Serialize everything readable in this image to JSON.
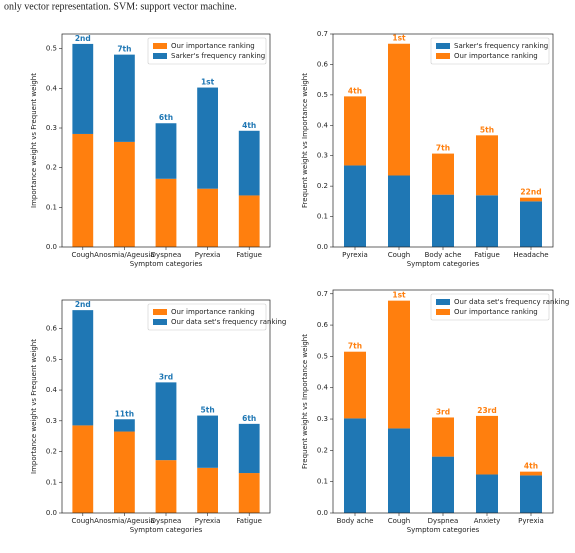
{
  "caption": "only vector representation. SVM: support vector machine.",
  "chart_data": [
    {
      "type": "bar",
      "stacked": true,
      "categories": [
        "Cough",
        "Anosmia/Ageusia",
        "Dyspnea",
        "Pyrexia",
        "Fatigue"
      ],
      "series": [
        {
          "name": "Our importance ranking",
          "color": "#ff7f0e",
          "values": [
            0.285,
            0.265,
            0.172,
            0.147,
            0.13
          ]
        },
        {
          "name": "Sarker's frequency ranking",
          "color": "#1f77b4",
          "values": [
            0.227,
            0.22,
            0.14,
            0.255,
            0.163
          ]
        }
      ],
      "annotations": [
        "2nd",
        "7th",
        "6th",
        "1st",
        "4th"
      ],
      "xlabel": "Symptom categories",
      "ylabel": "Importance weight vs Frequent weight",
      "ylim": [
        0,
        0.537
      ],
      "yticks": [
        {
          "value": 0,
          "label": "0.0"
        },
        0.1,
        0.2,
        0.3,
        0.4,
        0.5
      ],
      "legend": "upper right"
    },
    {
      "type": "bar",
      "stacked": true,
      "categories": [
        "Pyrexia",
        "Cough",
        "Body ache",
        "Fatigue",
        "Headache"
      ],
      "series": [
        {
          "name": "Sarker's frequency ranking",
          "color": "#1f77b4",
          "values": [
            0.268,
            0.235,
            0.172,
            0.17,
            0.15
          ]
        },
        {
          "name": "Our importance ranking",
          "color": "#ff7f0e",
          "values": [
            0.227,
            0.433,
            0.135,
            0.197,
            0.012
          ]
        }
      ],
      "annotations": [
        "4th",
        "1st",
        "7th",
        "5th",
        "22nd"
      ],
      "xlabel": "Symptom categories",
      "ylabel": "Frequent weight vs Importance weight",
      "ylim": [
        0,
        0.7
      ],
      "yticks": [
        {
          "value": 0,
          "label": "0.0"
        },
        0.1,
        0.2,
        0.3,
        0.4,
        0.5,
        0.6,
        0.7
      ],
      "legend": "upper right"
    },
    {
      "type": "bar",
      "stacked": true,
      "categories": [
        "Cough",
        "Anosmia/Ageusia",
        "Dyspnea",
        "Pyrexia",
        "Fatigue"
      ],
      "series": [
        {
          "name": "Our importance ranking",
          "color": "#ff7f0e",
          "values": [
            0.285,
            0.265,
            0.172,
            0.147,
            0.13
          ]
        },
        {
          "name": "Our data set's frequency ranking",
          "color": "#1f77b4",
          "values": [
            0.375,
            0.04,
            0.253,
            0.17,
            0.16
          ]
        }
      ],
      "annotations": [
        "2nd",
        "11th",
        "3rd",
        "5th",
        "6th"
      ],
      "xlabel": "Symptom categories",
      "ylabel": "Importance weight vs Frequent weight",
      "ylim": [
        0,
        0.693
      ],
      "yticks": [
        {
          "value": 0,
          "label": "0.0"
        },
        0.1,
        0.2,
        0.3,
        0.4,
        0.5,
        0.6
      ],
      "legend": "upper right"
    },
    {
      "type": "bar",
      "stacked": true,
      "categories": [
        "Body ache",
        "Cough",
        "Dyspnea",
        "Anxiety",
        "Pyrexia"
      ],
      "series": [
        {
          "name": "Our data set's frequency ranking",
          "color": "#1f77b4",
          "values": [
            0.302,
            0.27,
            0.18,
            0.123,
            0.12
          ]
        },
        {
          "name": "Our importance ranking",
          "color": "#ff7f0e",
          "values": [
            0.213,
            0.408,
            0.125,
            0.187,
            0.012
          ]
        }
      ],
      "annotations": [
        "7th",
        "1st",
        "3rd",
        "23rd",
        "4th"
      ],
      "xlabel": "Symptom categories",
      "ylabel": "Frequent weight vs Importance weight",
      "ylim": [
        0,
        0.712
      ],
      "yticks": [
        {
          "value": 0,
          "label": "0.0"
        },
        0.1,
        0.2,
        0.3,
        0.4,
        0.5,
        0.6,
        0.7
      ],
      "legend": "upper right"
    }
  ]
}
